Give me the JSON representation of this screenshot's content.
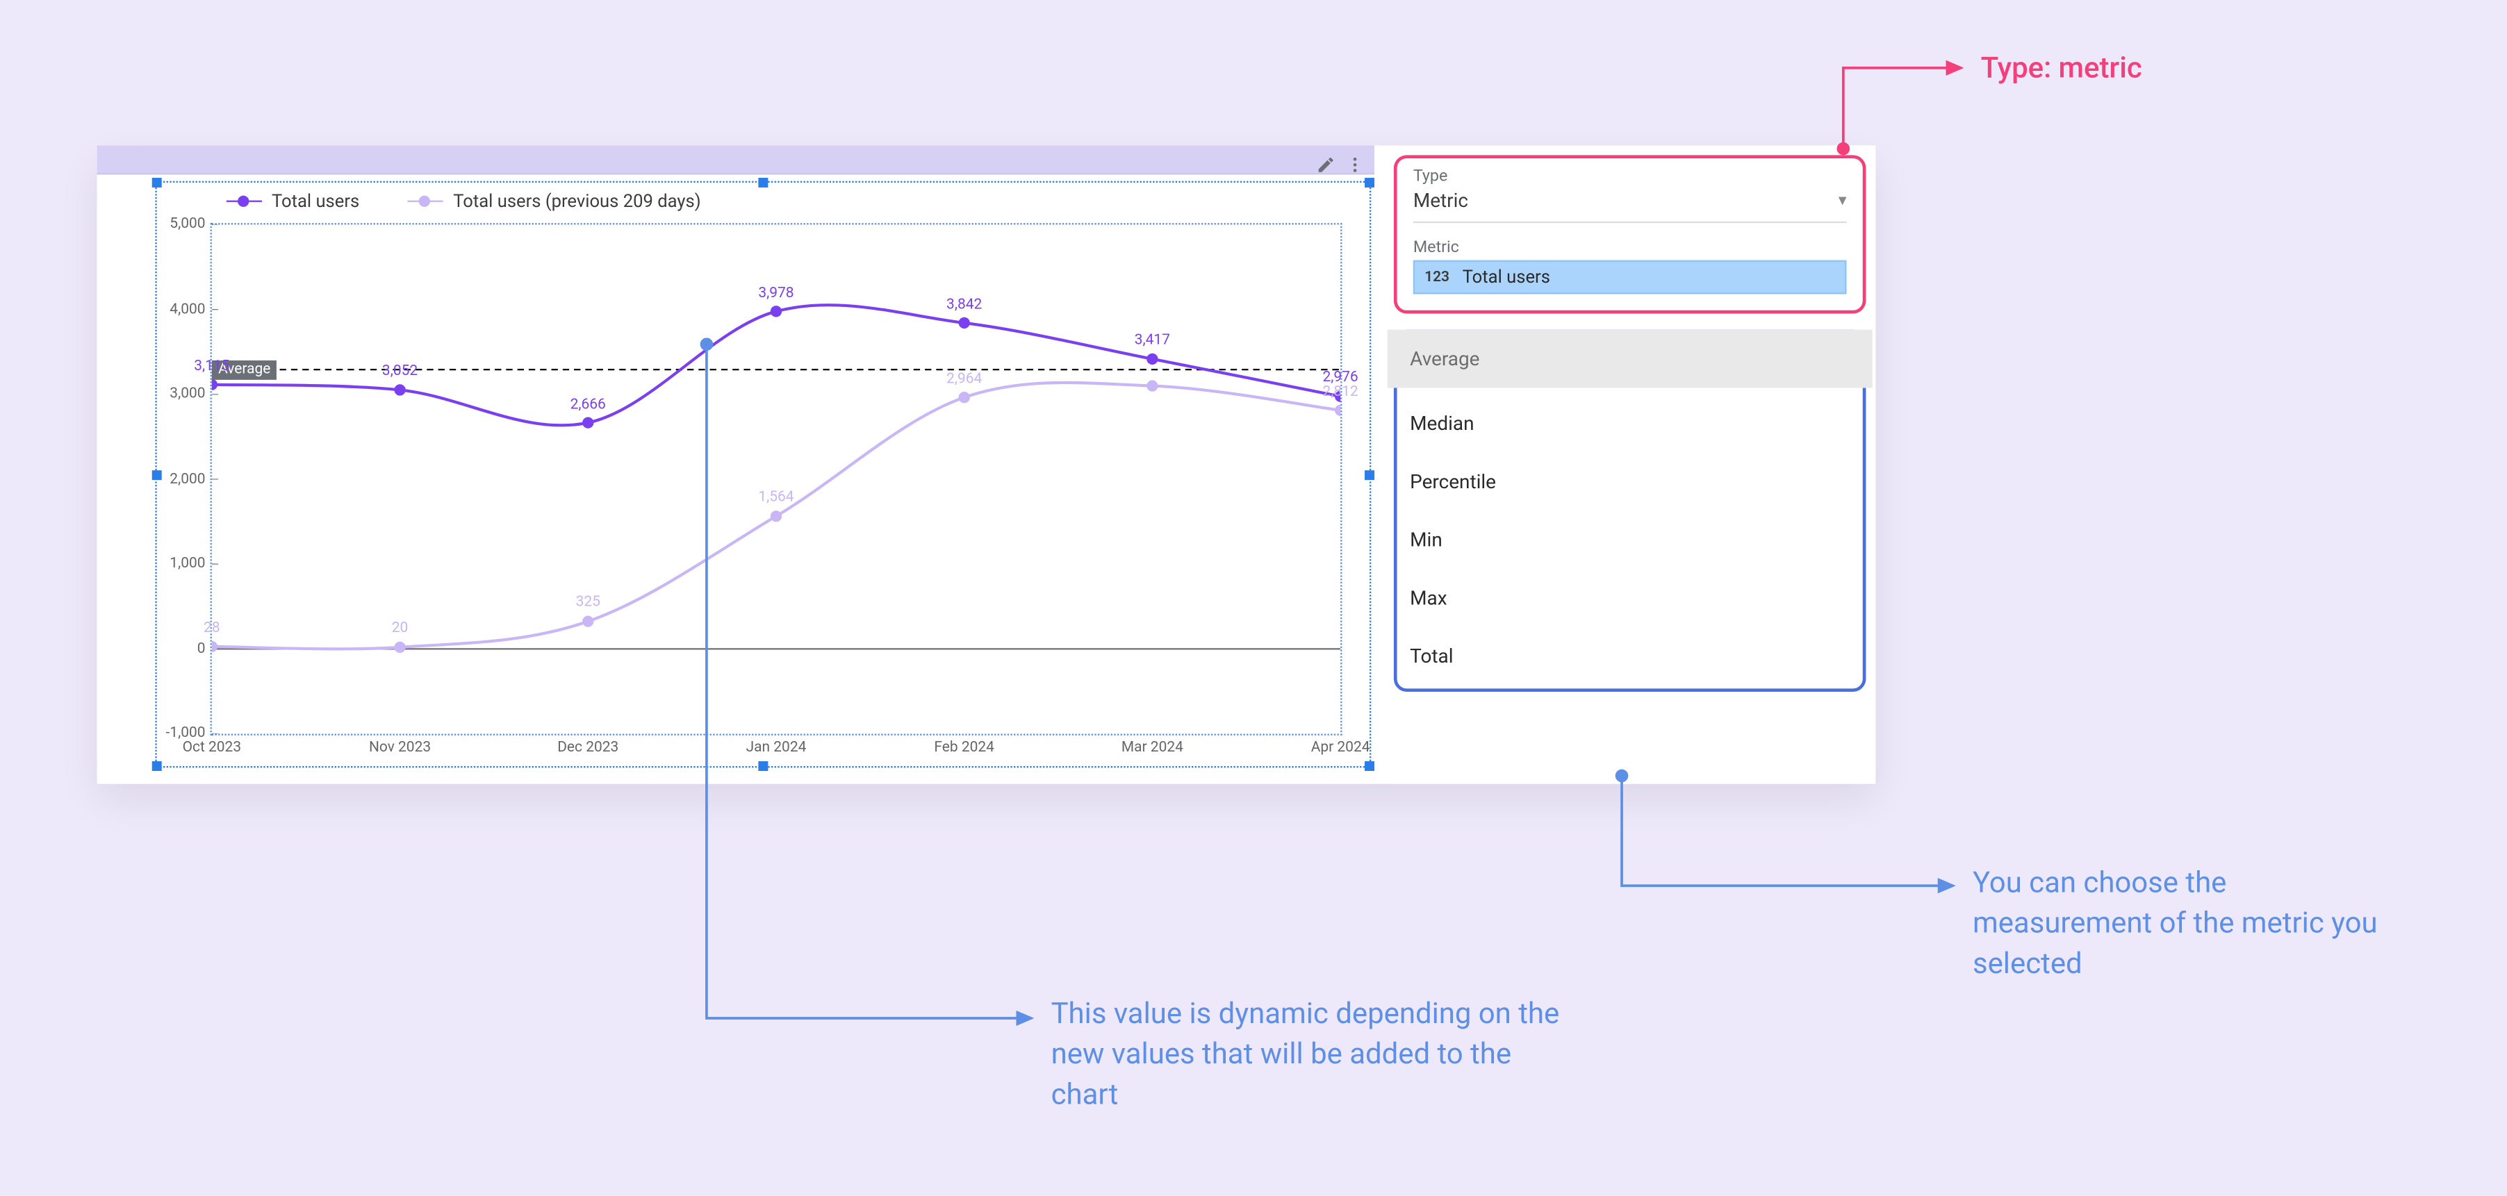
{
  "background_color": "#eee8fb",
  "dashboard": {
    "chart": {
      "type": "line",
      "legend": {
        "series_a": {
          "label": "Total users",
          "color": "#7b3ff2"
        },
        "series_b": {
          "label": "Total users (previous 209 days)",
          "color": "#c8b6f7"
        }
      },
      "y_axis": {
        "ticks": [
          -1000,
          0,
          1000,
          2000,
          3000,
          4000,
          5000
        ],
        "tick_labels": [
          "-1,000",
          "0",
          "1,000",
          "2,000",
          "3,000",
          "4,000",
          "5,000"
        ],
        "min": -1000,
        "max": 5000
      },
      "x_axis": {
        "categories": [
          "Oct 2023",
          "Nov 2023",
          "Dec 2023",
          "Jan 2024",
          "Feb 2024",
          "Mar 2024",
          "Apr 2024"
        ]
      },
      "series_a": {
        "color": "#7b3ff2",
        "values": [
          3115,
          3052,
          2666,
          3978,
          3842,
          3417,
          2976
        ],
        "labels": [
          "3,115",
          "3,052",
          "2,666",
          "3,978",
          "3,842",
          "3,417",
          "2,976"
        ]
      },
      "series_b": {
        "color": "#c8b6f7",
        "values": [
          28,
          20,
          325,
          1564,
          2964,
          3100,
          2812
        ],
        "labels": [
          "28",
          "20",
          "325",
          "1,564",
          "2,964",
          "",
          "2,812"
        ]
      },
      "reference_line": {
        "label": "Average",
        "value": 3292,
        "color": "#000000",
        "style": "dashed"
      },
      "selection_border_color": "#2b7de9",
      "plot_border_color": "#5e8fe6",
      "background_color": "#ffffff"
    },
    "side_panel": {
      "type_section": {
        "label": "Type",
        "value": "Metric",
        "metric_label": "Metric",
        "metric_badge_num": "123",
        "metric_value": "Total users",
        "border_color": "#f43f7a",
        "pill_bg": "#aad4fb"
      },
      "measure_section": {
        "selected": "Average",
        "options": [
          "Median",
          "Percentile",
          "Min",
          "Max",
          "Total"
        ],
        "border_color": "#4a6ee0"
      }
    }
  },
  "annotations": {
    "type_metric": {
      "text": "Type: metric",
      "color": "#f43f7a"
    },
    "dynamic_value": {
      "text": "This value is dynamic depending on the new values that will be added to the chart",
      "color": "#5e8fe6"
    },
    "choose_measurement": {
      "text": "You can choose the measurement of the metric you selected",
      "color": "#5e8fe6"
    }
  }
}
